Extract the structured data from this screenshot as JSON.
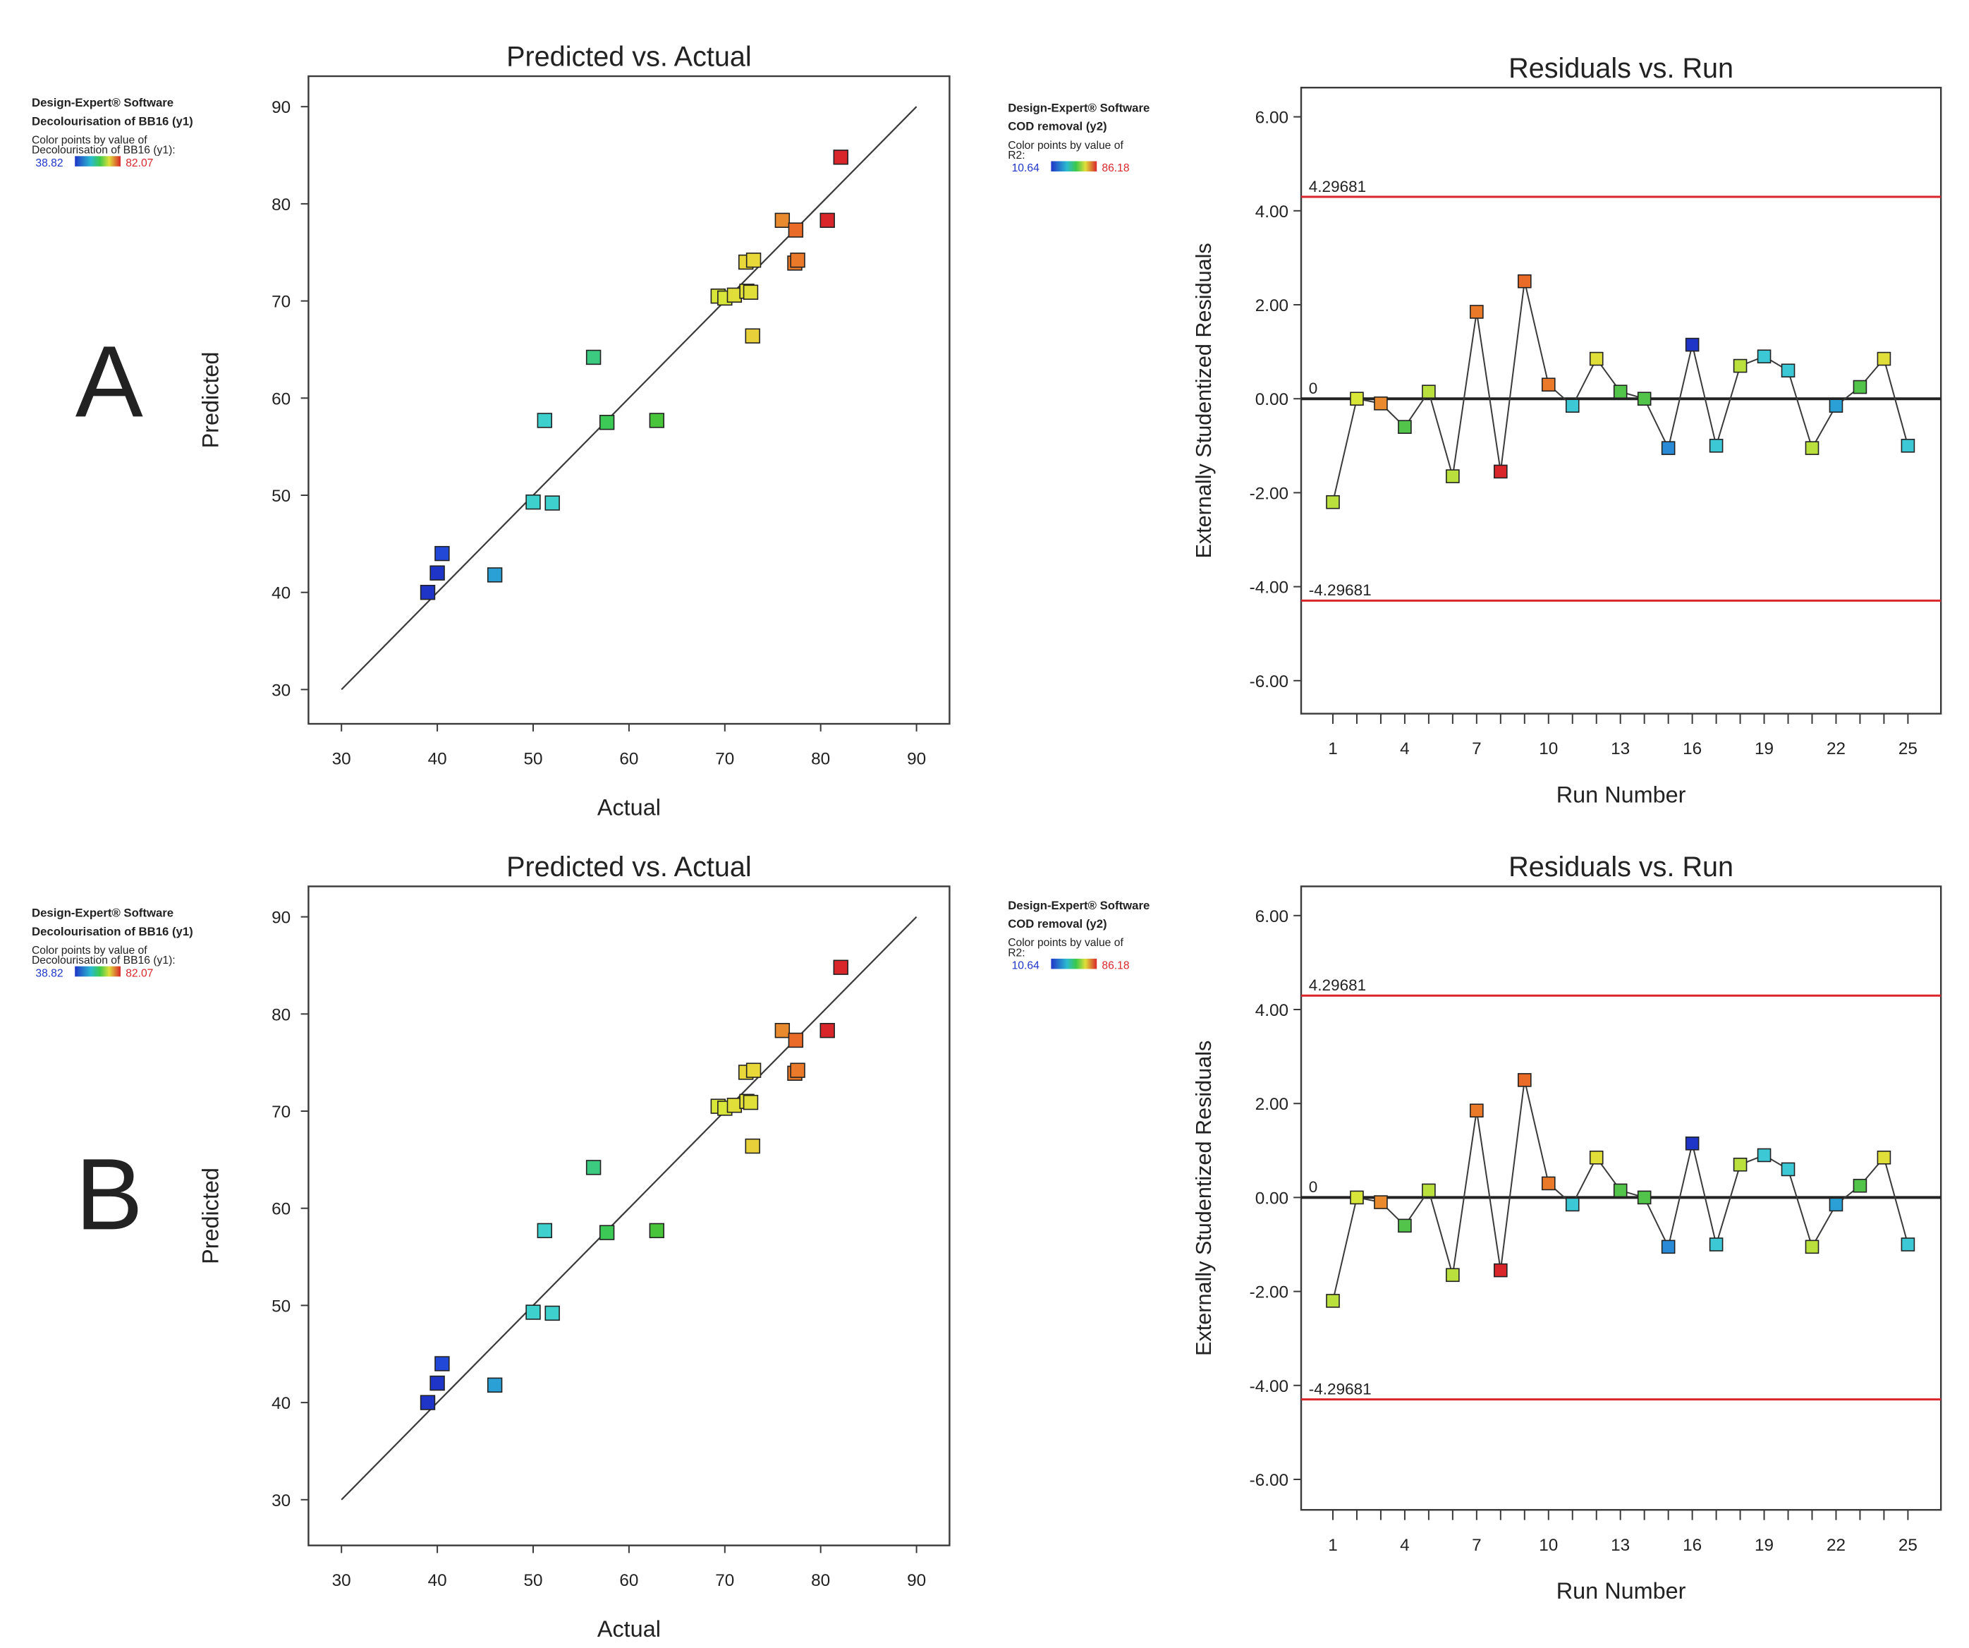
{
  "colors": {
    "line": "#3a3a3a",
    "limit_line": "#d9262b",
    "frame": "#3a3a3a",
    "text": "#222222",
    "legend_low": "#1f35c8",
    "legend_high": "#d9262b"
  },
  "panels": [
    {
      "label": "A",
      "left_legend": {
        "software": "Design-Expert® Software",
        "response": "Decolourisation of BB16 (y1)",
        "color_note_1": "Color points by value of",
        "color_note_2": "Decolourisation of BB16 (y1):",
        "low": "38.82",
        "high": "82.07"
      },
      "right_legend": {
        "software": "Design-Expert® Software",
        "response": "COD removal (y2)",
        "color_note_1": "Color points by value of",
        "color_note_2": "R2:",
        "low": "10.64",
        "high": "86.18"
      }
    },
    {
      "label": "B",
      "left_legend": {
        "software": "Design-Expert® Software",
        "response": "Decolourisation of BB16 (y1)",
        "color_note_1": "Color points by value of",
        "color_note_2": "Decolourisation of BB16 (y1):",
        "low": "38.82",
        "high": "82.07"
      },
      "right_legend": {
        "software": "Design-Expert® Software",
        "response": "COD removal (y2)",
        "color_note_1": "Color points by value of",
        "color_note_2": "R2:",
        "low": "10.64",
        "high": "86.18"
      }
    }
  ],
  "chart_data": [
    {
      "type": "scatter",
      "title": "Predicted vs. Actual",
      "xlabel": "Actual",
      "ylabel": "Predicted",
      "xlim": [
        27,
        94
      ],
      "ylim": [
        27,
        94
      ],
      "xticks": [
        "30",
        "40",
        "50",
        "60",
        "70",
        "80",
        "90"
      ],
      "yticks": [
        "30",
        "40",
        "50",
        "60",
        "70",
        "80",
        "90"
      ],
      "reference_line": [
        [
          30,
          30
        ],
        [
          90,
          90
        ]
      ],
      "points": [
        {
          "x": 39,
          "y": 40,
          "color": "#1f35c8"
        },
        {
          "x": 40,
          "y": 42,
          "color": "#1f35c8"
        },
        {
          "x": 40.5,
          "y": 44,
          "color": "#2248d8"
        },
        {
          "x": 46,
          "y": 41.8,
          "color": "#2aa0d6"
        },
        {
          "x": 50,
          "y": 49.3,
          "color": "#3dd0cc"
        },
        {
          "x": 52,
          "y": 49.2,
          "color": "#3dd0cc"
        },
        {
          "x": 51.2,
          "y": 57.7,
          "color": "#3dd0cc"
        },
        {
          "x": 56.3,
          "y": 64.2,
          "color": "#3cc980"
        },
        {
          "x": 57.7,
          "y": 57.5,
          "color": "#3cc956"
        },
        {
          "x": 62.9,
          "y": 57.7,
          "color": "#49c53c"
        },
        {
          "x": 69.3,
          "y": 70.5,
          "color": "#d8e63a"
        },
        {
          "x": 70,
          "y": 70.3,
          "color": "#d8e63a"
        },
        {
          "x": 71,
          "y": 70.6,
          "color": "#e0df3a"
        },
        {
          "x": 72.3,
          "y": 71,
          "color": "#e0df3a"
        },
        {
          "x": 72.7,
          "y": 70.9,
          "color": "#e0df3a"
        },
        {
          "x": 72.2,
          "y": 74,
          "color": "#e8d83a"
        },
        {
          "x": 73,
          "y": 74.2,
          "color": "#e8d83a"
        },
        {
          "x": 72.9,
          "y": 66.4,
          "color": "#e8d03a"
        },
        {
          "x": 76,
          "y": 78.3,
          "color": "#ea8a2e"
        },
        {
          "x": 77.4,
          "y": 77.3,
          "color": "#ea6a28"
        },
        {
          "x": 77.3,
          "y": 73.9,
          "color": "#ea7a2a"
        },
        {
          "x": 77.6,
          "y": 74.2,
          "color": "#ea7a2a"
        },
        {
          "x": 80.7,
          "y": 78.3,
          "color": "#d9262b"
        },
        {
          "x": 82.1,
          "y": 84.8,
          "color": "#d9262b"
        }
      ]
    },
    {
      "type": "line",
      "title": "Residuals vs. Run",
      "xlabel": "Run Number",
      "ylabel": "Externally Studentized Residuals",
      "xlim": [
        -0.4,
        26.4
      ],
      "ylim": [
        -6.7,
        6.4
      ],
      "xticks": [
        "1",
        "4",
        "7",
        "10",
        "13",
        "16",
        "19",
        "22",
        "25"
      ],
      "yticks": [
        "6.00",
        "4.00",
        "2.00",
        "0.00",
        "-2.00",
        "-4.00",
        "-6.00"
      ],
      "upper_limit": 4.29681,
      "lower_limit": -4.29681,
      "upper_limit_label": "4.29681",
      "lower_limit_label": "-4.29681",
      "zero_label": "0",
      "runs": [
        1,
        2,
        3,
        4,
        5,
        6,
        7,
        8,
        9,
        10,
        11,
        12,
        13,
        14,
        15,
        16,
        17,
        18,
        19,
        20,
        21,
        22,
        23,
        24,
        25
      ],
      "residuals": [
        -2.2,
        0.0,
        -0.1,
        -0.6,
        0.15,
        -1.65,
        1.85,
        -1.55,
        2.5,
        0.3,
        -0.15,
        0.85,
        0.15,
        0.0,
        -1.05,
        1.15,
        -1.0,
        0.7,
        0.9,
        0.6,
        -1.05,
        -0.15,
        0.25,
        0.85,
        -1.0
      ],
      "point_colors": [
        "#b9e03c",
        "#d8e63a",
        "#ea8a2e",
        "#52c44a",
        "#b9e03c",
        "#b9e03c",
        "#ea7a2a",
        "#d9262b",
        "#ea6a28",
        "#ea7a2a",
        "#3dc8d6",
        "#e0df3a",
        "#52c44a",
        "#52c44a",
        "#2a8ad6",
        "#1f35c8",
        "#3dc8d6",
        "#b9e03c",
        "#3dc8d6",
        "#3dc8d6",
        "#b9e03c",
        "#2aa0d6",
        "#52c44a",
        "#e0df3a",
        "#3dc8d6"
      ]
    }
  ]
}
